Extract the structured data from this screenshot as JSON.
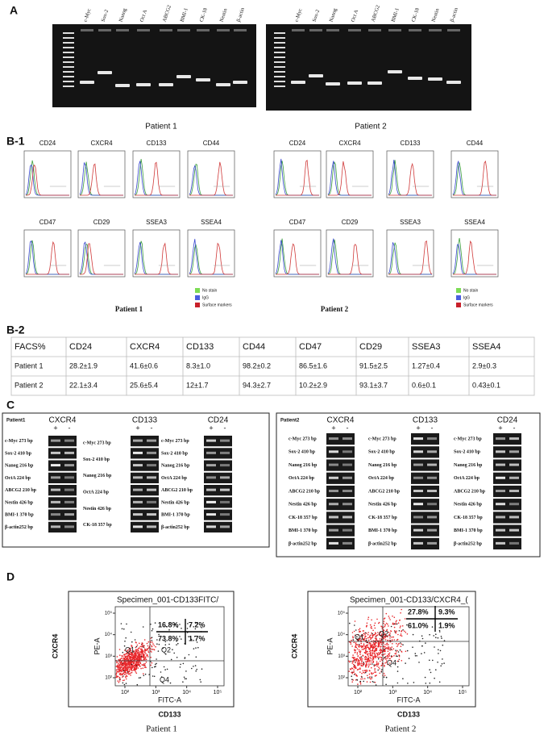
{
  "panel_a": {
    "label": "A",
    "gels": [
      {
        "lanes": [
          "c-Myc",
          "Sox-2",
          "Nanog",
          "Oct A",
          "ABCG2",
          "BMI-1",
          "CK-18",
          "Nestin",
          "β-actin"
        ],
        "caption": "Patient 1"
      },
      {
        "lanes": [
          "c-Myc",
          "Sox-2",
          "Nanog",
          "Oct A",
          "ABCG2",
          "BMI-1",
          "CK-18",
          "Nestin",
          "β-actin"
        ],
        "caption": "Patient 2"
      }
    ]
  },
  "panel_b1": {
    "label": "B-1",
    "patients": [
      {
        "markers": [
          "CD24",
          "CXCR4",
          "CD133",
          "CD44",
          "CD47",
          "CD29",
          "SSEA3",
          "SSEA4"
        ],
        "legend": [
          "No stain",
          "IgG",
          "Surface markers"
        ],
        "caption": "Patient 1"
      },
      {
        "markers": [
          "CD24",
          "CXCR4",
          "CD133",
          "CD44",
          "CD47",
          "CD29",
          "SSEA3",
          "SSEA4"
        ],
        "legend": [
          "No stain",
          "IgG",
          "Surface markers"
        ],
        "caption": "Patient 2"
      }
    ]
  },
  "panel_b2": {
    "label": "B-2",
    "table": {
      "header": [
        "FACS%",
        "CD24",
        "CXCR4",
        "CD133",
        "CD44",
        "CD47",
        "CD29",
        "SSEA3",
        "SSEA4"
      ],
      "rows": [
        [
          "Patient 1",
          "28.2±1.9",
          "41.6±0.6",
          "8.3±1.0",
          "98.2±0.2",
          "86.5±1.6",
          "91.5±2.5",
          "1.27±0.4",
          "2.9±0.3"
        ],
        [
          "Patient 2",
          "22.1±3.4",
          "25.6±5.4",
          "12±1.7",
          "94.3±2.7",
          "10.2±2.9",
          "93.1±3.7",
          "0.6±0.1",
          "0.43±0.1"
        ]
      ]
    }
  },
  "panel_c": {
    "label": "C",
    "patients": [
      {
        "name": "Patient1",
        "plus": "+",
        "minus": "-",
        "blocks": [
          {
            "title": "CXCR4",
            "genes": [
              "c-Myc 273 bp",
              "Sox-2 410 bp",
              "Nanog 216 bp",
              "OctA 224 bp",
              "ABCG2 210 bp",
              "Nestin 426 bp",
              "BMI-1 370 bp",
              "β-actin252 bp"
            ]
          },
          {
            "title": "CD133",
            "genes": [
              "c-Myc 273 bp",
              "Sox-2 410 bp",
              "Nanog 216 bp",
              "OctA 224 bp",
              "Nestin 426 bp",
              "CK-18 357 bp"
            ]
          },
          {
            "title": "CD24",
            "genes": [
              "c-Myc 273 bp",
              "Sox-2 410 bp",
              "Nanog 216 bp",
              "OctA 224 bp",
              "ABCG2 210 bp",
              "Nestin 426 bp",
              "BMI-1 370 bp",
              "β-actin252 bp"
            ]
          }
        ]
      },
      {
        "name": "Patient2",
        "plus": "+",
        "minus": "-",
        "blocks": [
          {
            "title": "CXCR4",
            "genes": [
              "c-Myc 273 bp",
              "Sox-2 410 bp",
              "Nanog 216 bp",
              "OctA 224 bp",
              "ABCG2 210 bp",
              "Nestin 426 bp",
              "CK-18 357 bp",
              "BMI-1 370 bp",
              "β-actin252 bp"
            ]
          },
          {
            "title": "CD133",
            "genes": [
              "c-Myc 273 bp",
              "Sox-2 410 bp",
              "Nanog 216 bp",
              "OctA 224 bp",
              "ABCG2 210 bp",
              "Nestin 426 bp",
              "CK-18 357 bp",
              "BMI-1 370 bp",
              "β-actin252 bp"
            ]
          },
          {
            "title": "CD24",
            "genes": [
              "c-Myc 273 bp",
              "Sox-2 410 bp",
              "Nanog 216 bp",
              "OctA 224 bp",
              "ABCG2 210 bp",
              "Nestin 426 bp",
              "CK-18 357 bp",
              "BMI-1 370 bp",
              "β-actin252 bp"
            ]
          }
        ]
      }
    ]
  },
  "panel_d": {
    "label": "D",
    "plots": [
      {
        "title": "Specimen_001-CD133FITC/",
        "quadrant_values": [
          "16.8%",
          "7.2%",
          "73.8%",
          "1.7%"
        ],
        "quadrants": [
          "Q1",
          "Q2",
          "Q4"
        ],
        "y_axis": "PE-A",
        "x_axis": "FITC-A",
        "x_ticks": [
          "10²",
          "10³",
          "10⁴",
          "10⁵"
        ],
        "y_ticks": [
          "10²",
          "10³",
          "10⁴",
          "10⁵"
        ],
        "y_marker": "CXCR4",
        "x_marker": "CD133",
        "caption": "Patient 1"
      },
      {
        "title": "Specimen_001-CD133/CXCR4_(",
        "quadrant_values": [
          "27.8%",
          "9.3%",
          "61.0%",
          "1.9%"
        ],
        "quadrants": [
          "Q1",
          "Q2",
          "Q4"
        ],
        "y_axis": "PE-A",
        "x_axis": "FITC-A",
        "x_ticks": [
          "10²",
          "10³",
          "10⁴",
          "10⁵"
        ],
        "y_ticks": [
          "10²",
          "10³",
          "10⁴",
          "10⁵"
        ],
        "y_marker": "CXCR4",
        "x_marker": "CD133",
        "caption": "Patient 2"
      }
    ]
  }
}
